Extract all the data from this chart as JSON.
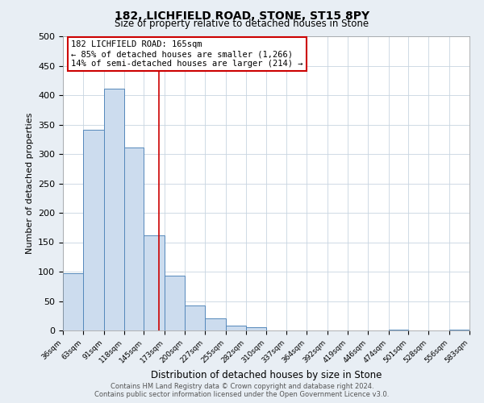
{
  "title_line1": "182, LICHFIELD ROAD, STONE, ST15 8PY",
  "title_line2": "Size of property relative to detached houses in Stone",
  "xlabel": "Distribution of detached houses by size in Stone",
  "ylabel": "Number of detached properties",
  "bin_edges": [
    36,
    63,
    91,
    118,
    145,
    173,
    200,
    227,
    255,
    282,
    310,
    337,
    364,
    392,
    419,
    446,
    474,
    501,
    528,
    556,
    583
  ],
  "bar_heights": [
    97,
    341,
    411,
    311,
    162,
    93,
    42,
    20,
    8,
    5,
    0,
    0,
    0,
    0,
    0,
    0,
    2,
    0,
    0,
    2
  ],
  "bar_color": "#ccdcee",
  "bar_edge_color": "#5588bb",
  "property_line_x": 165,
  "property_line_color": "#cc0000",
  "annotation_title": "182 LICHFIELD ROAD: 165sqm",
  "annotation_line1": "← 85% of detached houses are smaller (1,266)",
  "annotation_line2": "14% of semi-detached houses are larger (214) →",
  "annotation_box_color": "#cc0000",
  "ylim": [
    0,
    500
  ],
  "xlim": [
    36,
    583
  ],
  "ytick_interval": 50,
  "footer_line1": "Contains HM Land Registry data © Crown copyright and database right 2024.",
  "footer_line2": "Contains public sector information licensed under the Open Government Licence v3.0.",
  "background_color": "#e8eef4",
  "plot_background_color": "#ffffff",
  "grid_color": "#c8d4e0"
}
